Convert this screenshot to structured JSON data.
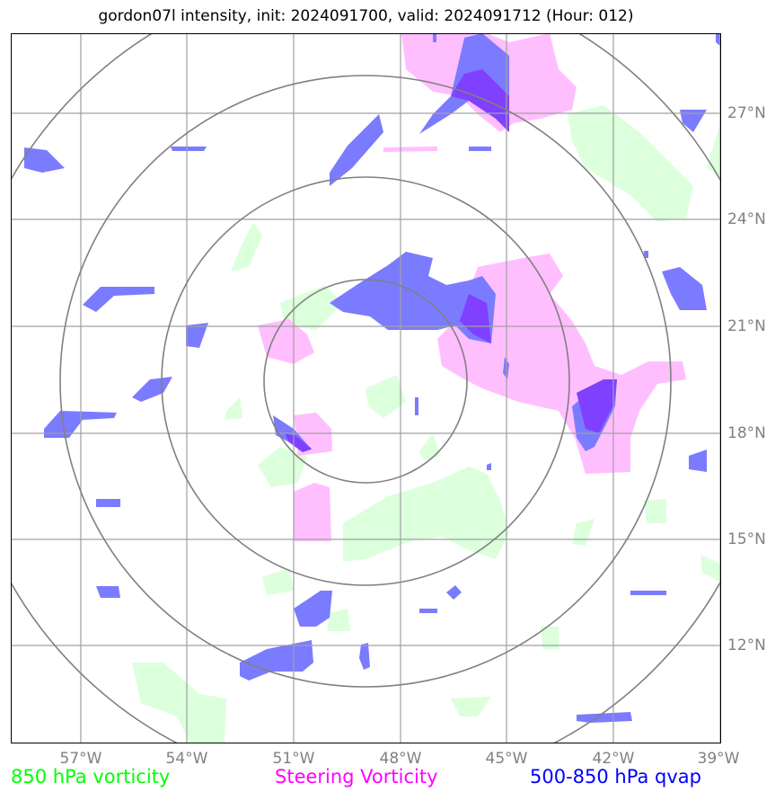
{
  "title": "gordon07l intensity, init: 2024091700, valid: 2024091712 (Hour: 012)",
  "axes": {
    "lon_ticks": [
      "57°W",
      "54°W",
      "51°W",
      "48°W",
      "45°W",
      "42°W",
      "39°W"
    ],
    "lat_ticks": [
      "27°N",
      "24°N",
      "21°N",
      "18°N",
      "15°N",
      "12°N"
    ],
    "lon_range": [
      -59,
      -39
    ],
    "lat_range": [
      9.5,
      29.5
    ],
    "grid": true
  },
  "range_rings": {
    "center": {
      "lon": -49,
      "lat": 19.5
    },
    "count": 4
  },
  "legend": [
    {
      "label": "850 hPa vorticity",
      "color": "#00ff00"
    },
    {
      "label": "Steering Vorticity",
      "color": "#ff00ff"
    },
    {
      "label": "500-850 hPa qvap",
      "color": "#0000ff"
    }
  ],
  "colors": {
    "vorticity_850_fill": "#dcffdc",
    "steering_fill": "#ffbfff",
    "qvap_fill": "#7b7bff",
    "overlap_fill": "#8040ff",
    "grid": "#a0a0a0",
    "rings": "#808080"
  }
}
